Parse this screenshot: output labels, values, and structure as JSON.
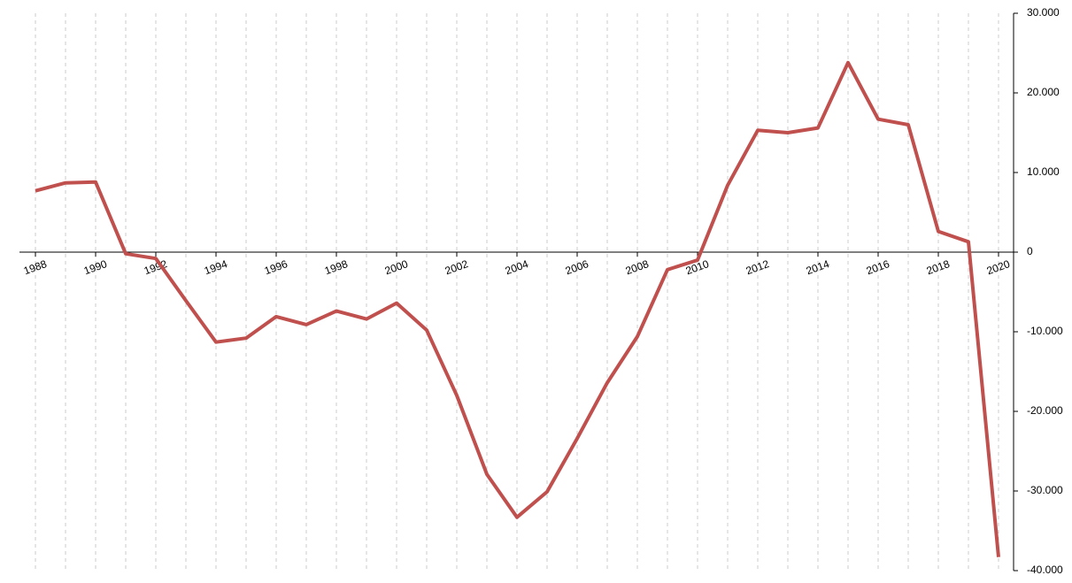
{
  "chart_data": {
    "type": "line",
    "x": [
      1988,
      1989,
      1990,
      1991,
      1992,
      1993,
      1994,
      1995,
      1996,
      1997,
      1998,
      1999,
      2000,
      2001,
      2002,
      2003,
      2004,
      2005,
      2006,
      2007,
      2008,
      2009,
      2010,
      2011,
      2012,
      2013,
      2014,
      2015,
      2016,
      2017,
      2018,
      2019,
      2020
    ],
    "series": [
      {
        "color": "#c0504d",
        "values": [
          7700,
          8700,
          8800,
          -200,
          -800,
          -6100,
          -11300,
          -10800,
          -8100,
          -9100,
          -7400,
          -8400,
          -6400,
          -9800,
          -18000,
          -27900,
          -33300,
          -30100,
          -23400,
          -16400,
          -10600,
          -2200,
          -1000,
          8400,
          15300,
          15000,
          15600,
          23800,
          16700,
          16000,
          2600,
          1300,
          -38300
        ]
      }
    ],
    "xlim": [
      1987.47,
      2020.5
    ],
    "xticks": [
      1988,
      1990,
      1992,
      1994,
      1996,
      1998,
      2000,
      2002,
      2004,
      2006,
      2008,
      2010,
      2012,
      2014,
      2016,
      2018,
      2020
    ],
    "ylim": [
      -40000,
      30000
    ],
    "yticks": [
      {
        "value": -40000,
        "label": "-40.000"
      },
      {
        "value": -30000,
        "label": "-30.000"
      },
      {
        "value": -20000,
        "label": "-20.000"
      },
      {
        "value": -10000,
        "label": "-10.000"
      },
      0,
      {
        "value": 10000,
        "label": "10.000"
      },
      {
        "value": 20000,
        "label": "20.000"
      },
      {
        "value": 30000,
        "label": "30.000"
      }
    ],
    "grid": true
  }
}
